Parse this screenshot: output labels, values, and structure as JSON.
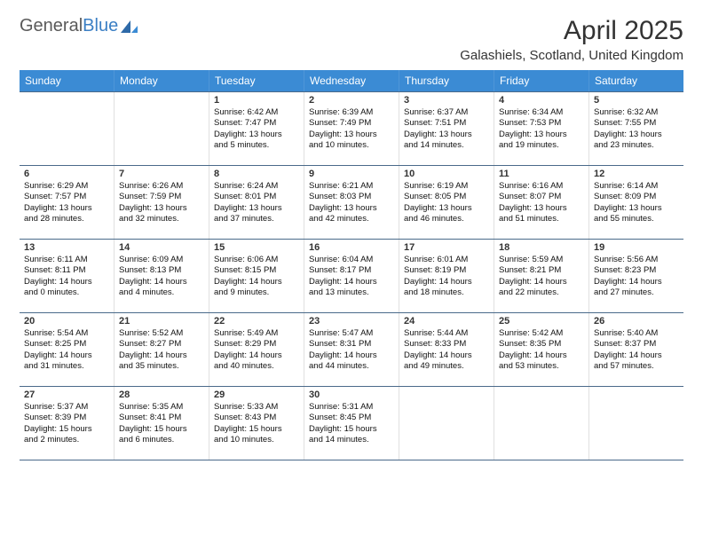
{
  "logo": {
    "text1": "General",
    "text2": "Blue"
  },
  "title": "April 2025",
  "location": "Galashiels, Scotland, United Kingdom",
  "colors": {
    "header_bg": "#3b8bd4",
    "rule": "#4a6a8a",
    "text": "#1a1a1a"
  },
  "day_names": [
    "Sunday",
    "Monday",
    "Tuesday",
    "Wednesday",
    "Thursday",
    "Friday",
    "Saturday"
  ],
  "weeks": [
    [
      null,
      null,
      {
        "n": "1",
        "sr": "6:42 AM",
        "ss": "7:47 PM",
        "dh": "13",
        "dm": "5"
      },
      {
        "n": "2",
        "sr": "6:39 AM",
        "ss": "7:49 PM",
        "dh": "13",
        "dm": "10"
      },
      {
        "n": "3",
        "sr": "6:37 AM",
        "ss": "7:51 PM",
        "dh": "13",
        "dm": "14"
      },
      {
        "n": "4",
        "sr": "6:34 AM",
        "ss": "7:53 PM",
        "dh": "13",
        "dm": "19"
      },
      {
        "n": "5",
        "sr": "6:32 AM",
        "ss": "7:55 PM",
        "dh": "13",
        "dm": "23"
      }
    ],
    [
      {
        "n": "6",
        "sr": "6:29 AM",
        "ss": "7:57 PM",
        "dh": "13",
        "dm": "28"
      },
      {
        "n": "7",
        "sr": "6:26 AM",
        "ss": "7:59 PM",
        "dh": "13",
        "dm": "32"
      },
      {
        "n": "8",
        "sr": "6:24 AM",
        "ss": "8:01 PM",
        "dh": "13",
        "dm": "37"
      },
      {
        "n": "9",
        "sr": "6:21 AM",
        "ss": "8:03 PM",
        "dh": "13",
        "dm": "42"
      },
      {
        "n": "10",
        "sr": "6:19 AM",
        "ss": "8:05 PM",
        "dh": "13",
        "dm": "46"
      },
      {
        "n": "11",
        "sr": "6:16 AM",
        "ss": "8:07 PM",
        "dh": "13",
        "dm": "51"
      },
      {
        "n": "12",
        "sr": "6:14 AM",
        "ss": "8:09 PM",
        "dh": "13",
        "dm": "55"
      }
    ],
    [
      {
        "n": "13",
        "sr": "6:11 AM",
        "ss": "8:11 PM",
        "dh": "14",
        "dm": "0"
      },
      {
        "n": "14",
        "sr": "6:09 AM",
        "ss": "8:13 PM",
        "dh": "14",
        "dm": "4"
      },
      {
        "n": "15",
        "sr": "6:06 AM",
        "ss": "8:15 PM",
        "dh": "14",
        "dm": "9"
      },
      {
        "n": "16",
        "sr": "6:04 AM",
        "ss": "8:17 PM",
        "dh": "14",
        "dm": "13"
      },
      {
        "n": "17",
        "sr": "6:01 AM",
        "ss": "8:19 PM",
        "dh": "14",
        "dm": "18"
      },
      {
        "n": "18",
        "sr": "5:59 AM",
        "ss": "8:21 PM",
        "dh": "14",
        "dm": "22"
      },
      {
        "n": "19",
        "sr": "5:56 AM",
        "ss": "8:23 PM",
        "dh": "14",
        "dm": "27"
      }
    ],
    [
      {
        "n": "20",
        "sr": "5:54 AM",
        "ss": "8:25 PM",
        "dh": "14",
        "dm": "31"
      },
      {
        "n": "21",
        "sr": "5:52 AM",
        "ss": "8:27 PM",
        "dh": "14",
        "dm": "35"
      },
      {
        "n": "22",
        "sr": "5:49 AM",
        "ss": "8:29 PM",
        "dh": "14",
        "dm": "40"
      },
      {
        "n": "23",
        "sr": "5:47 AM",
        "ss": "8:31 PM",
        "dh": "14",
        "dm": "44"
      },
      {
        "n": "24",
        "sr": "5:44 AM",
        "ss": "8:33 PM",
        "dh": "14",
        "dm": "49"
      },
      {
        "n": "25",
        "sr": "5:42 AM",
        "ss": "8:35 PM",
        "dh": "14",
        "dm": "53"
      },
      {
        "n": "26",
        "sr": "5:40 AM",
        "ss": "8:37 PM",
        "dh": "14",
        "dm": "57"
      }
    ],
    [
      {
        "n": "27",
        "sr": "5:37 AM",
        "ss": "8:39 PM",
        "dh": "15",
        "dm": "2"
      },
      {
        "n": "28",
        "sr": "5:35 AM",
        "ss": "8:41 PM",
        "dh": "15",
        "dm": "6"
      },
      {
        "n": "29",
        "sr": "5:33 AM",
        "ss": "8:43 PM",
        "dh": "15",
        "dm": "10"
      },
      {
        "n": "30",
        "sr": "5:31 AM",
        "ss": "8:45 PM",
        "dh": "15",
        "dm": "14"
      },
      null,
      null,
      null
    ]
  ],
  "labels": {
    "sunrise": "Sunrise:",
    "sunset": "Sunset:",
    "daylight": "Daylight:",
    "hours": "hours",
    "and": "and",
    "minutes": "minutes."
  }
}
